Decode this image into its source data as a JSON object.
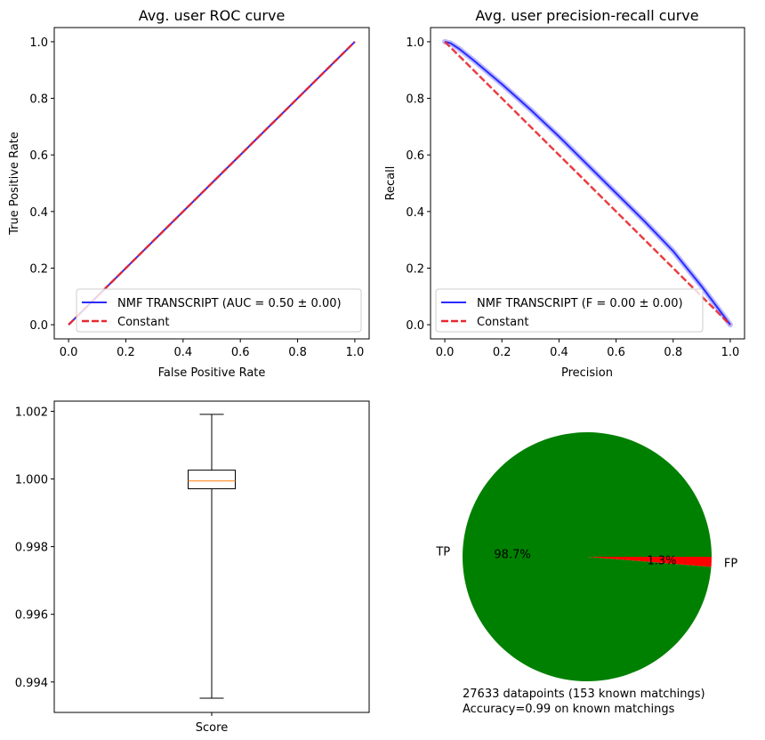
{
  "colors": {
    "model": "#2a2aff",
    "constant": "#e8282e",
    "box_median": "#ff7f0e",
    "pie_tp": "#008000",
    "pie_fp": "#ff0000",
    "pr_band": "#8c8cff"
  },
  "chart_data": [
    {
      "id": "roc",
      "type": "line",
      "title": "Avg. user ROC curve",
      "xlabel": "False Positive Rate",
      "ylabel": "True Positive Rate",
      "xlim": [
        -0.05,
        1.05
      ],
      "ylim": [
        -0.05,
        1.05
      ],
      "xticks": [
        "0.0",
        "0.2",
        "0.4",
        "0.6",
        "0.8",
        "1.0"
      ],
      "yticks": [
        "0.0",
        "0.2",
        "0.4",
        "0.6",
        "0.8",
        "1.0"
      ],
      "legend_position": "lower right",
      "series": [
        {
          "name": "NMF TRANSCRIPT (AUC = 0.50 ± 0.00)",
          "style": "solid",
          "x": [
            0,
            1
          ],
          "y": [
            0,
            1
          ]
        },
        {
          "name": "Constant",
          "style": "dashed",
          "x": [
            0,
            1
          ],
          "y": [
            0,
            1
          ]
        }
      ]
    },
    {
      "id": "pr",
      "type": "line",
      "title": "Avg. user precision-recall curve",
      "xlabel": "Precision",
      "ylabel": "Recall",
      "xlim": [
        -0.05,
        1.05
      ],
      "ylim": [
        -0.05,
        1.05
      ],
      "xticks": [
        "0.0",
        "0.2",
        "0.4",
        "0.6",
        "0.8",
        "1.0"
      ],
      "yticks": [
        "0.0",
        "0.2",
        "0.4",
        "0.6",
        "0.8",
        "1.0"
      ],
      "legend_position": "lower left",
      "series": [
        {
          "name": "NMF TRANSCRIPT (F = 0.00 ± 0.00)",
          "style": "solid",
          "x": [
            0,
            0.02,
            0.05,
            0.1,
            0.2,
            0.3,
            0.4,
            0.5,
            0.6,
            0.7,
            0.8,
            0.9,
            1.0
          ],
          "y": [
            1.0,
            0.995,
            0.975,
            0.935,
            0.85,
            0.76,
            0.665,
            0.565,
            0.465,
            0.365,
            0.26,
            0.135,
            0.0
          ]
        },
        {
          "name": "Constant",
          "style": "dashed",
          "x": [
            0,
            1
          ],
          "y": [
            1,
            0
          ]
        }
      ]
    },
    {
      "id": "box",
      "type": "box",
      "category": "Score",
      "ylim": [
        0.9931,
        1.0023
      ],
      "yticks": [
        {
          "label": "0.994",
          "value": 0.994
        },
        {
          "label": "0.996",
          "value": 0.996
        },
        {
          "label": "0.998",
          "value": 0.998
        },
        {
          "label": "1.000",
          "value": 1.0
        },
        {
          "label": "1.002",
          "value": 1.002
        }
      ],
      "whisker_low": 0.99352,
      "q1": 0.99971,
      "median": 0.99994,
      "q3": 1.00026,
      "whisker_high": 1.00191
    },
    {
      "id": "pie",
      "type": "pie",
      "slices": [
        {
          "label": "TP",
          "pct_label": "98.7%",
          "value": 98.7
        },
        {
          "label": "FP",
          "pct_label": "1.3%",
          "value": 1.3
        }
      ],
      "caption_lines": [
        "27633 datapoints (153 known matchings)",
        "Accuracy=0.99 on known matchings"
      ]
    }
  ]
}
